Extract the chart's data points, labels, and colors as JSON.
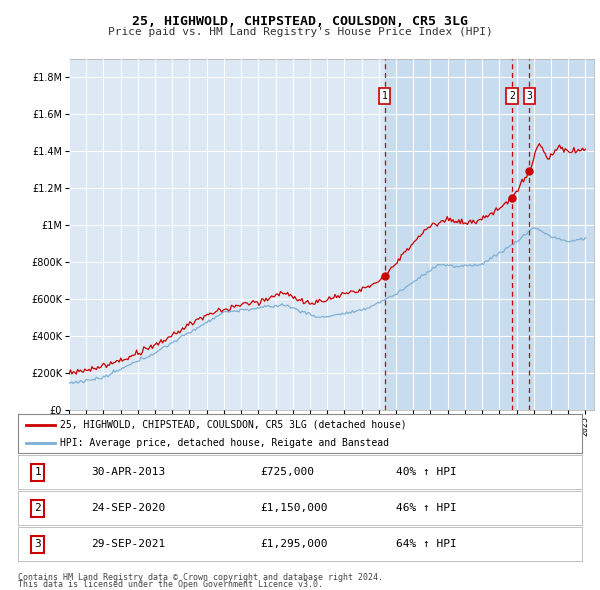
{
  "title": "25, HIGHWOLD, CHIPSTEAD, COULSDON, CR5 3LG",
  "subtitle": "Price paid vs. HM Land Registry's House Price Index (HPI)",
  "background_color": "#ffffff",
  "plot_bg_color": "#dce9f5",
  "plot_bg_shade": "#c8dcf0",
  "grid_color": "#ffffff",
  "legend_line1": "25, HIGHWOLD, CHIPSTEAD, COULSDON, CR5 3LG (detached house)",
  "legend_line2": "HPI: Average price, detached house, Reigate and Banstead",
  "red_color": "#cc0000",
  "blue_color": "#7fafd4",
  "sale1_date": "30-APR-2013",
  "sale1_price": 725000,
  "sale1_label": "40% ↑ HPI",
  "sale2_date": "24-SEP-2020",
  "sale2_price": 1150000,
  "sale2_label": "46% ↑ HPI",
  "sale3_date": "29-SEP-2021",
  "sale3_price": 1295000,
  "sale3_label": "64% ↑ HPI",
  "footer1": "Contains HM Land Registry data © Crown copyright and database right 2024.",
  "footer2": "This data is licensed under the Open Government Licence v3.0.",
  "xmin": 1995.0,
  "xmax": 2025.5,
  "ymin": 0,
  "ymax": 1900000,
  "sale1_x": 2013.33,
  "sale2_x": 2020.73,
  "sale3_x": 2021.75,
  "yticks": [
    0,
    200000,
    400000,
    600000,
    800000,
    1000000,
    1200000,
    1400000,
    1600000,
    1800000
  ]
}
